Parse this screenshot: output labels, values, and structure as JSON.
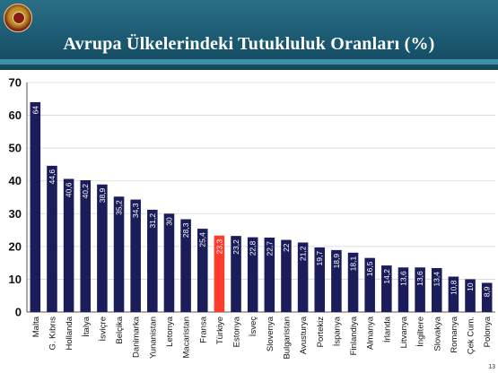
{
  "header": {
    "title": "Avrupa Ülkelerindeki Tutukluluk Oranları (%)",
    "page_number": "13"
  },
  "colors": {
    "bar": "#1a1d5a",
    "highlight": "#ff3b2b",
    "header": "#1c5a72"
  },
  "chart_data": {
    "type": "bar",
    "title": "Avrupa Ülkelerindeki Tutukluluk Oranları (%)",
    "xlabel": "",
    "ylabel": "",
    "ylim": [
      0,
      70
    ],
    "yticks": [
      "0",
      "10",
      "20",
      "30",
      "40",
      "50",
      "60",
      "70"
    ],
    "grid": true,
    "highlight_category": "Türkiye",
    "categories": [
      "Malta",
      "G. Kıbrıs",
      "Hollanda",
      "İtalya",
      "İsviçre",
      "Belçika",
      "Danimarka",
      "Yunanistan",
      "Letonya",
      "Macaristan",
      "Fransa",
      "Türkiye",
      "Estonya",
      "İsveç",
      "Slovenya",
      "Bulgaristan",
      "Avusturya",
      "Portekiz",
      "İspanya",
      "Finlandiya",
      "Almanya",
      "İrlanda",
      "Litvanya",
      "İngiltere",
      "Slovakya",
      "Romanya",
      "Çek Cum.",
      "Polonya"
    ],
    "values": [
      64,
      44.6,
      40.6,
      40.2,
      38.9,
      35.2,
      34.3,
      31.2,
      30,
      28.3,
      25.4,
      23.3,
      23.2,
      22.8,
      22.7,
      22,
      21.2,
      19.7,
      18.9,
      18.1,
      16.5,
      14.2,
      13.6,
      13.6,
      13.4,
      10.8,
      10,
      8.9
    ],
    "value_labels": [
      "64",
      "44,6",
      "40,6",
      "40,2",
      "38,9",
      "35,2",
      "34,3",
      "31,2",
      "30",
      "28,3",
      "25,4",
      "23,3",
      "23,2",
      "22,8",
      "22,7",
      "22",
      "21,2",
      "19,7",
      "18,9",
      "18,1",
      "16,5",
      "14,2",
      "13,6",
      "13,6",
      "13,4",
      "10,8",
      "10",
      "8,9"
    ]
  }
}
